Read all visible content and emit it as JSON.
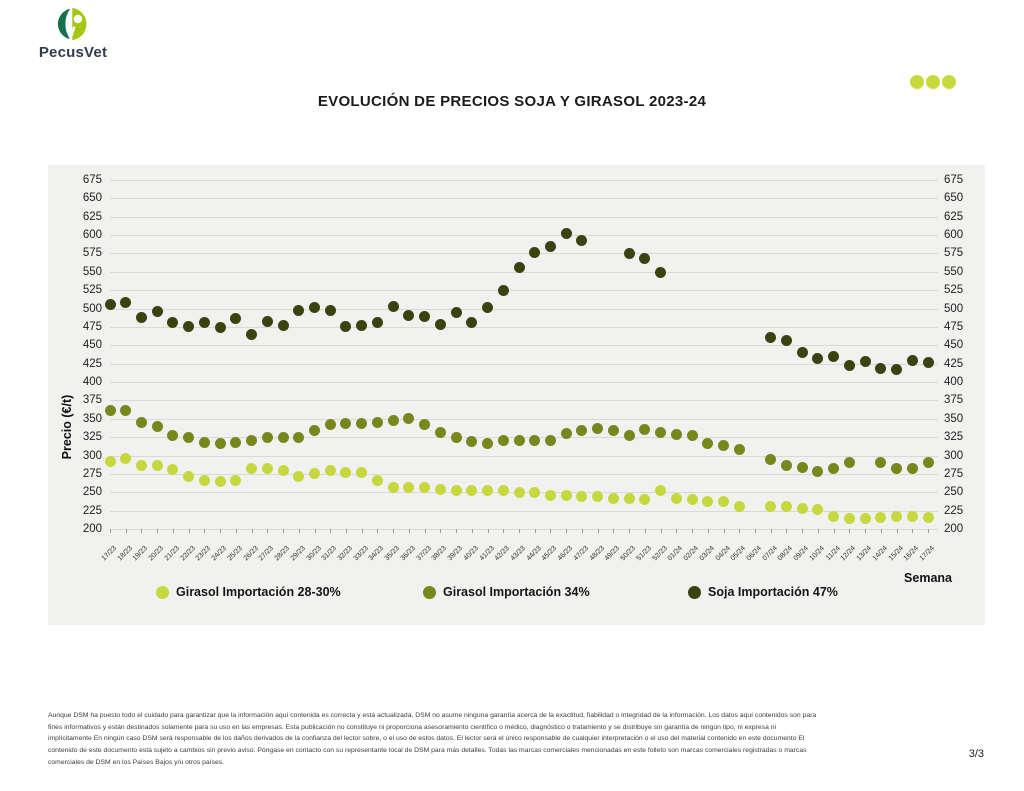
{
  "logo": {
    "text": "PecusVet",
    "dark_color": "#15724e",
    "lime_color": "#a4c615",
    "text_color": "#2e3d50"
  },
  "header": {
    "dots_color": "#c7da3d"
  },
  "title": "EVOLUCIÓN DE PRECIOS SOJA Y GIRASOL 2023-24",
  "chart_data": {
    "type": "scatter",
    "title": "EVOLUCIÓN DE PRECIOS SOJA Y GIRASOL 2023-24",
    "xlabel": "Semana",
    "ylabel": "Precio (€/t)",
    "ylim": [
      200,
      675
    ],
    "ytick_step": 25,
    "grid": true,
    "legend_position": "bottom",
    "categories": [
      "17/23",
      "18/23",
      "19/23",
      "20/23",
      "21/23",
      "22/23",
      "23/23",
      "24/23",
      "25/23",
      "26/23",
      "27/23",
      "28/23",
      "29/23",
      "30/23",
      "31/23",
      "32/23",
      "33/23",
      "34/23",
      "35/23",
      "36/23",
      "37/23",
      "38/23",
      "39/23",
      "40/23",
      "41/23",
      "42/23",
      "43/23",
      "44/23",
      "45/23",
      "46/23",
      "47/23",
      "48/23",
      "49/23",
      "50/23",
      "51/23",
      "52/23",
      "01/24",
      "02/24",
      "03/24",
      "04/24",
      "05/24",
      "06/24",
      "07/24",
      "08/24",
      "09/24",
      "10/24",
      "11/24",
      "12/24",
      "13/24",
      "14/24",
      "15/24",
      "16/24",
      "17/24"
    ],
    "series": [
      {
        "name": "Girasol Importación 28-30%",
        "color": "#c6d83e",
        "values": [
          292,
          296,
          287,
          286,
          281,
          272,
          266,
          265,
          266,
          283,
          283,
          280,
          271,
          276,
          279,
          277,
          277,
          266,
          257,
          256,
          256,
          254,
          253,
          253,
          252,
          252,
          250,
          249,
          246,
          245,
          244,
          244,
          242,
          242,
          240,
          252,
          241,
          240,
          238,
          238,
          231,
          null,
          230,
          230,
          228,
          227,
          217,
          214,
          214,
          216,
          217,
          217,
          216
        ]
      },
      {
        "name": "Girasol Importación 34%",
        "color": "#78861c",
        "values": [
          361,
          361,
          345,
          340,
          327,
          324,
          318,
          317,
          318,
          320,
          324,
          325,
          324,
          334,
          342,
          344,
          343,
          345,
          347,
          351,
          342,
          332,
          325,
          319,
          316,
          320,
          321,
          320,
          321,
          330,
          334,
          337,
          334,
          327,
          335,
          331,
          329,
          327,
          316,
          313,
          308,
          null,
          295,
          286,
          284,
          278,
          282,
          290,
          null,
          290,
          282,
          283,
          291
        ]
      },
      {
        "name": "Soja Importación 47%",
        "color": "#3a430f",
        "values": [
          505,
          508,
          488,
          496,
          481,
          475,
          481,
          474,
          486,
          465,
          483,
          477,
          498,
          502,
          497,
          475,
          477,
          481,
          503,
          490,
          489,
          479,
          494,
          481,
          502,
          525,
          556,
          577,
          584,
          602,
          592,
          null,
          null,
          575,
          568,
          549,
          null,
          null,
          null,
          null,
          null,
          null,
          460,
          457,
          440,
          432,
          435,
          423,
          428,
          418,
          417,
          429,
          427
        ]
      }
    ]
  },
  "footer": {
    "lines": [
      "Aunque DSM ha puesto todo el cuidado para garantizar que la información aquí contenida es correcta y está actualizada, DSM no asume ninguna garantía acerca de la exactitud, fiabilidad o integridad de la información. Los datos aquí contenidos son para",
      "fines informativos y están destinados solamente para su uso en las empresas. Esta publicación no constituye ni proporciona asesoramiento científico o médico, diagnóstico o tratamiento y se distribuye sin garantía de ningún tipo, ni expresa ni",
      "implícitamente En ningún caso DSM será responsable de los daños derivados de la confianza del lector sobre, o el uso de estos datos. El lector será el único responsable de cualquier interpretación o el uso del material contenido en este documento El",
      "contenido de este documento está sujeto a cambios sin previo aviso. Póngase en contacto con su representante local de DSM para más detalles. Todas las marcas comerciales mencionadas en este folleto son marcas comerciales registradas o marcas",
      "comerciales de DSM en los Países Bajos y/u otros países."
    ],
    "page": "3/3"
  }
}
